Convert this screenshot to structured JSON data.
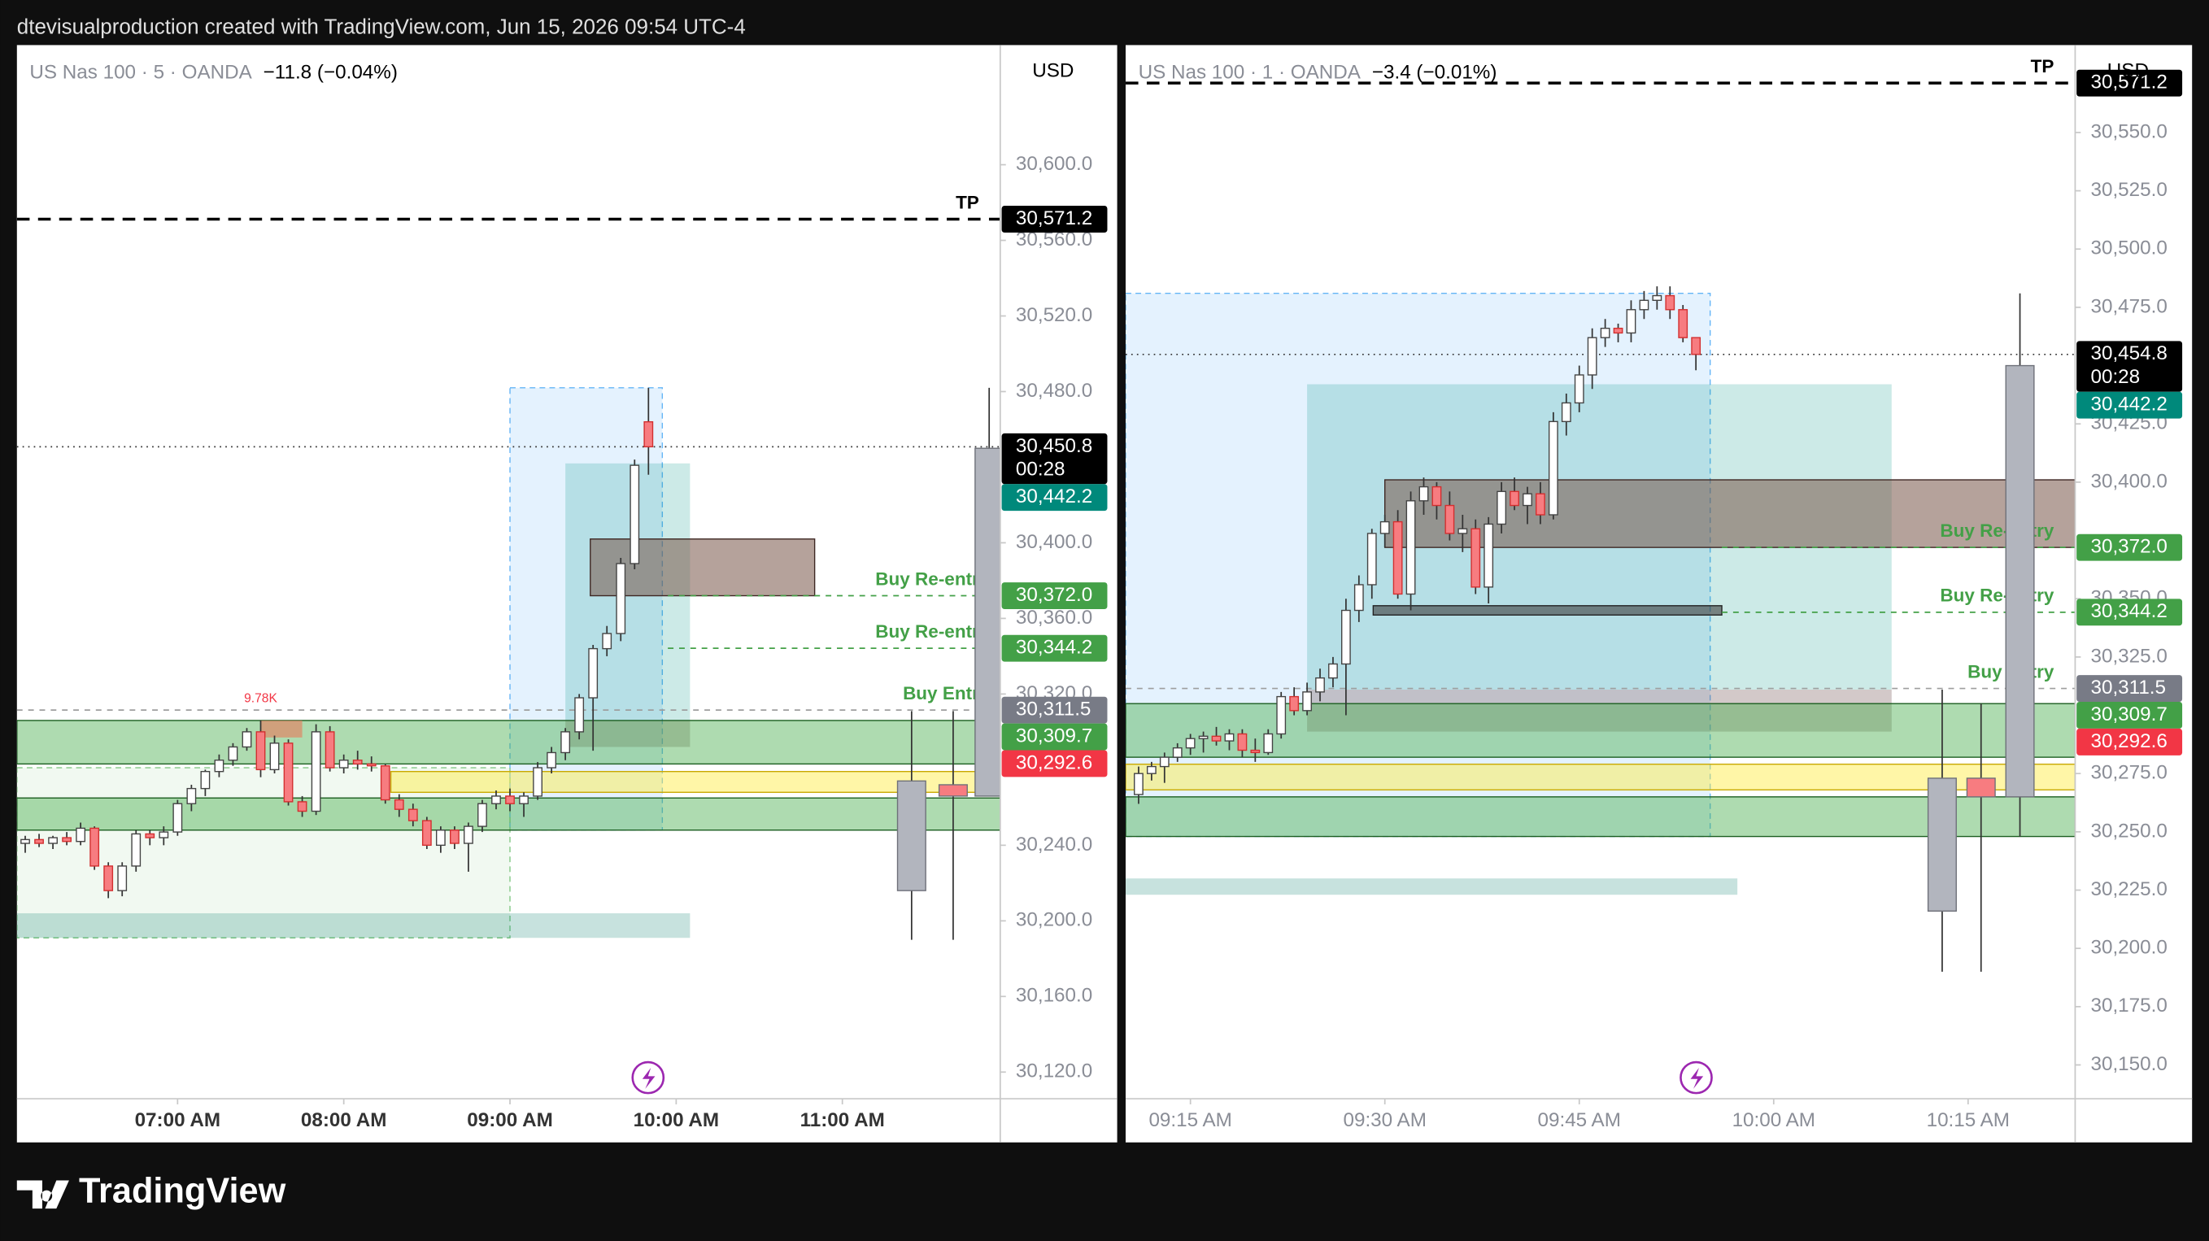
{
  "header": "dtevisualproduction created with TradingView.com, Jun 15, 2026 09:54 UTC-4",
  "footer_brand": "TradingView",
  "chart_data": [
    {
      "type": "candlestick",
      "symbol": "US Nas 100 · 5 · OANDA",
      "change": "−11.8 (−0.04%)",
      "currency": "USD",
      "xlim": [
        362,
        717
      ],
      "ylim": [
        30105.9,
        30663.3
      ],
      "xticks": [
        {
          "value": 420,
          "label": "07:00 AM"
        },
        {
          "value": 480,
          "label": "08:00 AM"
        },
        {
          "value": 540,
          "label": "09:00 AM"
        },
        {
          "value": 600,
          "label": "10:00 AM"
        },
        {
          "value": 660,
          "label": "11:00 AM"
        }
      ],
      "yticks": [
        {
          "value": 30600,
          "label": "30,600.0"
        },
        {
          "value": 30560,
          "label": "30,560.0"
        },
        {
          "value": 30520,
          "label": "30,520.0"
        },
        {
          "value": 30480,
          "label": "30,480.0"
        },
        {
          "value": 30400,
          "label": "30,400.0"
        },
        {
          "value": 30360,
          "label": "30,360.0"
        },
        {
          "value": 30320,
          "label": "30,320.0"
        },
        {
          "value": 30240,
          "label": "30,240.0"
        },
        {
          "value": 30200,
          "label": "30,200.0"
        },
        {
          "value": 30160,
          "label": "30,160.0"
        },
        {
          "value": 30120,
          "label": "30,120.0"
        }
      ],
      "up_color": "#ffffff",
      "down_color": "#f77c80",
      "candles": {
        "x": [
          365,
          370,
          375,
          380,
          385,
          390,
          395,
          400,
          405,
          410,
          415,
          420,
          425,
          430,
          435,
          440,
          445,
          450,
          455,
          460,
          465,
          470,
          475,
          480,
          485,
          490,
          495,
          500,
          505,
          510,
          515,
          520,
          525,
          530,
          535,
          540,
          545,
          550,
          555,
          560,
          565,
          570,
          575,
          580,
          585,
          590
        ],
        "open": [
          30241,
          30243,
          30241,
          30244,
          30242,
          30249,
          30229,
          30216,
          30229,
          30246,
          30244,
          30247,
          30262,
          30270,
          30279,
          30285,
          30292,
          30300,
          30280,
          30294,
          30263,
          30258,
          30300,
          30281,
          30285,
          30283,
          30282,
          30264,
          30259,
          30253,
          30240,
          30248,
          30241,
          30250,
          30262,
          30266,
          30262,
          30266,
          30281,
          30289,
          30300,
          30318,
          30344,
          30352,
          30389,
          30464
        ],
        "high": [
          30245,
          30246,
          30245,
          30247,
          30252,
          30250,
          30231,
          30231,
          30248,
          30248,
          30250,
          30264,
          30272,
          30280,
          30288,
          30294,
          30302,
          30306,
          30298,
          30296,
          30266,
          30304,
          30303,
          30288,
          30290,
          30287,
          30283,
          30267,
          30262,
          30255,
          30250,
          30250,
          30252,
          30264,
          30269,
          30270,
          30268,
          30284,
          30292,
          30302,
          30320,
          30346,
          30356,
          30392,
          30444,
          30482
        ],
        "low": [
          30236,
          30239,
          30238,
          30240,
          30240,
          30227,
          30212,
          30213,
          30226,
          30240,
          30240,
          30245,
          30258,
          30266,
          30276,
          30282,
          30290,
          30276,
          30278,
          30261,
          30255,
          30256,
          30279,
          30278,
          30280,
          30279,
          30262,
          30255,
          30250,
          30238,
          30236,
          30238,
          30226,
          30247,
          30259,
          30258,
          30255,
          30264,
          30278,
          30285,
          30296,
          30290,
          30340,
          30348,
          30386,
          30436
        ],
        "close": [
          30243,
          30241,
          30244,
          30242,
          30249,
          30229,
          30216,
          30229,
          30246,
          30244,
          30247,
          30262,
          30270,
          30279,
          30285,
          30292,
          30300,
          30280,
          30294,
          30263,
          30258,
          30300,
          30281,
          30285,
          30283,
          30282,
          30264,
          30259,
          30253,
          30240,
          30248,
          30241,
          30250,
          30262,
          30266,
          30262,
          30266,
          30281,
          30289,
          30300,
          30318,
          30344,
          30352,
          30389,
          30441,
          30450.8
        ]
      },
      "overlay": {
        "x": [
          685,
          700,
          713
        ],
        "open": [
          30274,
          30272,
          30266
        ],
        "high": [
          30311,
          30311,
          30482
        ],
        "low": [
          30190,
          30190,
          30266
        ],
        "close": [
          30216,
          30266,
          30450
        ],
        "colors": [
          "#b2b5be",
          "#f77c80",
          "#b2b5be"
        ]
      },
      "zones": [
        {
          "x": [
            540,
            595
          ],
          "y": [
            30248,
            30482
          ],
          "fill": "rgba(33,150,243,0.12)",
          "stroke": "#64b5f6"
        },
        {
          "x": [
            362,
            540
          ],
          "y": [
            30191,
            30281
          ],
          "fill": "rgba(76,175,80,0.08)",
          "stroke": "#81c784"
        },
        {
          "x": [
            362,
            605
          ],
          "y": [
            30191,
            30204
          ],
          "fill": "rgba(0,121,107,0.22)"
        },
        {
          "x": [
            560,
            605
          ],
          "y": [
            30292,
            30442
          ],
          "fill": "rgba(0,150,136,0.2)"
        },
        {
          "x": [
            560,
            605
          ],
          "y": [
            30292,
            30306
          ],
          "fill": "rgba(242,54,69,0.18)"
        },
        {
          "y": [
            30283,
            30306
          ],
          "fill": "rgba(76,175,80,0.45)",
          "stroke": "#1b5e20"
        },
        {
          "y": [
            30248,
            30265
          ],
          "fill": "rgba(76,175,80,0.45)",
          "stroke": "#1b5e20"
        },
        {
          "x": [
            497,
            null
          ],
          "y": [
            30268,
            30279
          ],
          "fill": "rgba(255,235,59,0.45)",
          "stroke": "#c8a800"
        },
        {
          "x": [
            569,
            650
          ],
          "y": [
            30372,
            30402
          ],
          "fill": "rgba(121,85,72,0.55)",
          "stroke": "#3e2723"
        },
        {
          "x": [
            450,
            465
          ],
          "y": [
            30297,
            30306
          ],
          "fill": "rgba(230,120,90,0.6)"
        }
      ],
      "annotations": [
        {
          "text": "9.78K",
          "x": 450,
          "price": 30313,
          "color": "#f23645"
        }
      ],
      "price_labels": [
        {
          "value": 30571.2,
          "label": "30,571.2",
          "bg": "#000000",
          "line": "dashed-bold",
          "tag": "TP",
          "tag_color": "#000000"
        },
        {
          "value": 30450.8,
          "label": "30,450.8",
          "bg": "#000000",
          "line": "dotted",
          "countdown": "00:28"
        },
        {
          "value": 30442.2,
          "label": "30,442.2",
          "bg": "#00897b"
        },
        {
          "value": 30372.0,
          "label": "30,372.0",
          "bg": "#43a047",
          "line": "dashed-green",
          "line_from": 597,
          "tag": "Buy Re-entr",
          "tag_color": "#43a047"
        },
        {
          "value": 30344.2,
          "label": "30,344.2",
          "bg": "#43a047",
          "line": "dashed-green",
          "line_from": 597,
          "tag": "Buy Re-entr",
          "tag_color": "#43a047"
        },
        {
          "value": 30311.5,
          "label": "30,311.5",
          "bg": "#787b86",
          "line": "dashed-gray",
          "tag": "Buy Entr",
          "tag_color": "#43a047"
        },
        {
          "value": 30309.7,
          "label": "30,309.7",
          "bg": "#43a047"
        },
        {
          "value": 30292.6,
          "label": "30,292.6",
          "bg": "#f23645"
        }
      ]
    },
    {
      "type": "candlestick",
      "symbol": "US Nas 100 · 1 · OANDA",
      "change": "−3.4 (−0.01%)",
      "currency": "USD",
      "xlim": [
        550,
        623.26
      ],
      "ylim": [
        30135.5,
        30587.5
      ],
      "xticks": [
        {
          "value": 555,
          "label": "09:15 AM"
        },
        {
          "value": 570,
          "label": "09:30 AM"
        },
        {
          "value": 585,
          "label": "09:45 AM"
        },
        {
          "value": 600,
          "label": "10:00 AM"
        },
        {
          "value": 615,
          "label": "10:15 AM"
        }
      ],
      "yticks": [
        {
          "value": 30550,
          "label": "30,550.0"
        },
        {
          "value": 30525,
          "label": "30,525.0"
        },
        {
          "value": 30500,
          "label": "30,500.0"
        },
        {
          "value": 30475,
          "label": "30,475.0"
        },
        {
          "value": 30425,
          "label": "30,425.0"
        },
        {
          "value": 30400,
          "label": "30,400.0"
        },
        {
          "value": 30350,
          "label": "30,350.0"
        },
        {
          "value": 30325,
          "label": "30,325.0"
        },
        {
          "value": 30275,
          "label": "30,275.0"
        },
        {
          "value": 30250,
          "label": "30,250.0"
        },
        {
          "value": 30225,
          "label": "30,225.0"
        },
        {
          "value": 30200,
          "label": "30,200.0"
        },
        {
          "value": 30175,
          "label": "30,175.0"
        },
        {
          "value": 30150,
          "label": "30,150.0"
        }
      ],
      "up_color": "#ffffff",
      "down_color": "#f77c80",
      "candles": {
        "x": [
          551,
          552,
          553,
          554,
          555,
          556,
          557,
          558,
          559,
          560,
          561,
          562,
          563,
          564,
          565,
          566,
          567,
          568,
          569,
          570,
          571,
          572,
          573,
          574,
          575,
          576,
          577,
          578,
          579,
          580,
          581,
          582,
          583,
          584,
          585,
          586,
          587,
          588,
          589,
          590,
          591,
          592,
          593,
          594
        ],
        "open": [
          30266,
          30275,
          30278,
          30282,
          30286,
          30290,
          30291,
          30289,
          30292,
          30285,
          30284,
          30292,
          30308,
          30302,
          30310,
          30316,
          30322,
          30345,
          30356,
          30378,
          30383,
          30352,
          30392,
          30398,
          30390,
          30378,
          30380,
          30355,
          30382,
          30396,
          30390,
          30395,
          30386,
          30426,
          30434,
          30446,
          30462,
          30466,
          30464,
          30474,
          30478,
          30480,
          30474,
          30462
        ],
        "high": [
          30278,
          30280,
          30284,
          30288,
          30292,
          30293,
          30295,
          30294,
          30294,
          30290,
          30294,
          30310,
          30312,
          30314,
          30320,
          30325,
          30350,
          30360,
          30380,
          30386,
          30388,
          30396,
          30402,
          30400,
          30396,
          30386,
          30384,
          30385,
          30400,
          30402,
          30398,
          30400,
          30430,
          30438,
          30450,
          30466,
          30470,
          30468,
          30478,
          30482,
          30484,
          30484,
          30476,
          30462
        ],
        "low": [
          30262,
          30272,
          30271,
          30280,
          30283,
          30284,
          30287,
          30285,
          30282,
          30280,
          30283,
          30290,
          30300,
          30300,
          30306,
          30312,
          30300,
          30340,
          30350,
          30372,
          30350,
          30345,
          30386,
          30384,
          30375,
          30370,
          30352,
          30348,
          30378,
          30388,
          30382,
          30382,
          30384,
          30420,
          30430,
          30440,
          30458,
          30460,
          30460,
          30470,
          30474,
          30470,
          30460,
          30448
        ],
        "close": [
          30275,
          30278,
          30282,
          30286,
          30290,
          30291,
          30289,
          30292,
          30285,
          30284,
          30292,
          30308,
          30302,
          30310,
          30316,
          30322,
          30345,
          30356,
          30378,
          30383,
          30352,
          30392,
          30398,
          30390,
          30378,
          30380,
          30355,
          30382,
          30396,
          30390,
          30395,
          30386,
          30426,
          30434,
          30446,
          30462,
          30466,
          30464,
          30474,
          30478,
          30480,
          30474,
          30462,
          30454.8
        ]
      },
      "overlay": {
        "x": [
          613,
          616,
          619
        ],
        "open": [
          30273,
          30273,
          30265
        ],
        "high": [
          30311,
          30305,
          30481
        ],
        "low": [
          30190,
          30190,
          30248
        ],
        "close": [
          30216,
          30265,
          30450
        ],
        "colors": [
          "#b2b5be",
          "#f77c80",
          "#b2b5be"
        ]
      },
      "zones": [
        {
          "x": [
            550,
            595.1
          ],
          "y": [
            30248,
            30481
          ],
          "fill": "rgba(33,150,243,0.12)",
          "stroke": "#64b5f6"
        },
        {
          "x": [
            564,
            609.1
          ],
          "y": [
            30293,
            30442
          ],
          "fill": "rgba(0,150,136,0.2)"
        },
        {
          "x": [
            564,
            609.1
          ],
          "y": [
            30293,
            30311
          ],
          "fill": "rgba(242,54,69,0.18)"
        },
        {
          "y": [
            30282,
            30305
          ],
          "fill": "rgba(76,175,80,0.45)",
          "stroke": "#1b5e20"
        },
        {
          "y": [
            30248,
            30265
          ],
          "fill": "rgba(76,175,80,0.45)",
          "stroke": "#1b5e20"
        },
        {
          "y": [
            30268,
            30279
          ],
          "fill": "rgba(255,235,59,0.45)",
          "stroke": "#c8a800"
        },
        {
          "x": [
            570,
            null
          ],
          "y": [
            30372,
            30401
          ],
          "fill": "rgba(121,85,72,0.55)",
          "stroke": "#3e2723"
        },
        {
          "x": [
            550,
            597.2
          ],
          "y": [
            30223,
            30230
          ],
          "fill": "rgba(0,121,107,0.22)"
        },
        {
          "x": [
            569.1,
            596
          ],
          "y": [
            30343,
            30347
          ],
          "fill": "rgba(60,60,60,0.6)",
          "stroke": "#222222"
        }
      ],
      "annotations": [],
      "price_labels": [
        {
          "value": 30571.2,
          "label": "30,571.2",
          "bg": "#000000",
          "line": "dashed-bold",
          "tag": "TP",
          "tag_color": "#000000",
          "hide_tag_box": true
        },
        {
          "value": 30454.8,
          "label": "30,454.8",
          "bg": "#000000",
          "line": "dotted",
          "countdown": "00:28"
        },
        {
          "value": 30442.2,
          "label": "30,442.2",
          "bg": "#00897b"
        },
        {
          "value": 30372.0,
          "label": "30,372.0",
          "bg": "#43a047",
          "line": "dashed-green",
          "line_from": 596,
          "tag": "Buy Re-entry",
          "tag_color": "#43a047"
        },
        {
          "value": 30344.2,
          "label": "30,344.2",
          "bg": "#43a047",
          "line": "dashed-green",
          "line_from": 596,
          "tag": "Buy Re-entry",
          "tag_color": "#43a047"
        },
        {
          "value": 30311.5,
          "label": "30,311.5",
          "bg": "#787b86",
          "line": "dashed-gray",
          "tag": "Buy Entry",
          "tag_color": "#43a047"
        },
        {
          "value": 30309.7,
          "label": "30,309.7",
          "bg": "#43a047"
        },
        {
          "value": 30292.6,
          "label": "30,292.6",
          "bg": "#f23645"
        }
      ]
    }
  ]
}
